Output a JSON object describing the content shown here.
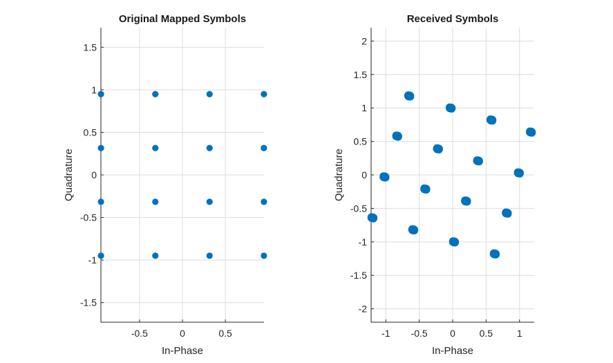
{
  "figure": {
    "marker_color": "#0072BD"
  },
  "chart_data": [
    {
      "type": "scatter",
      "title": "Original Mapped Symbols",
      "xlabel": "In-Phase",
      "ylabel": "Quadrature",
      "xlim": [
        -0.95,
        0.95
      ],
      "ylim": [
        -1.73,
        1.73
      ],
      "xticks": [
        -0.5,
        0,
        0.5
      ],
      "xtick_labels": [
        "-0.5",
        "0",
        "0.5"
      ],
      "yticks": [
        -1.5,
        -1,
        -0.5,
        0,
        0.5,
        1,
        1.5
      ],
      "ytick_labels": [
        "-1.5",
        "-1",
        "-0.5",
        "0",
        "0.5",
        "1",
        "1.5"
      ],
      "grid": true,
      "points": [
        [
          -0.949,
          0.949
        ],
        [
          -0.316,
          0.949
        ],
        [
          0.316,
          0.949
        ],
        [
          0.949,
          0.949
        ],
        [
          -0.949,
          0.316
        ],
        [
          -0.316,
          0.316
        ],
        [
          0.316,
          0.316
        ],
        [
          0.949,
          0.316
        ],
        [
          -0.949,
          -0.316
        ],
        [
          -0.316,
          -0.316
        ],
        [
          0.316,
          -0.316
        ],
        [
          0.949,
          -0.316
        ],
        [
          -0.949,
          -0.949
        ],
        [
          -0.316,
          -0.949
        ],
        [
          0.316,
          -0.949
        ],
        [
          0.949,
          -0.949
        ]
      ]
    },
    {
      "type": "scatter",
      "title": "Received Symbols",
      "xlabel": "In-Phase",
      "ylabel": "Quadrature",
      "xlim": [
        -1.22,
        1.22
      ],
      "ylim": [
        -2.2,
        2.2
      ],
      "xticks": [
        -1,
        -0.5,
        0,
        0.5,
        1
      ],
      "xtick_labels": [
        "-1",
        "-0.5",
        "0",
        "0.5",
        "1"
      ],
      "yticks": [
        -2,
        -1.5,
        -1,
        -0.5,
        0,
        0.5,
        1,
        1.5,
        2
      ],
      "ytick_labels": [
        "-2",
        "-1.5",
        "-1",
        "-0.5",
        "0",
        "0.5",
        "1",
        "1.5",
        "2"
      ],
      "grid": true,
      "points": [
        [
          -0.65,
          1.18
        ],
        [
          -0.03,
          1.0
        ],
        [
          0.58,
          0.82
        ],
        [
          1.17,
          0.64
        ],
        [
          -0.83,
          0.58
        ],
        [
          -0.22,
          0.39
        ],
        [
          0.38,
          0.21
        ],
        [
          0.99,
          0.03
        ],
        [
          -1.02,
          -0.03
        ],
        [
          -0.41,
          -0.21
        ],
        [
          0.2,
          -0.39
        ],
        [
          0.81,
          -0.57
        ],
        [
          -1.2,
          -0.64
        ],
        [
          -0.59,
          -0.82
        ],
        [
          0.02,
          -1.0
        ],
        [
          0.63,
          -1.18
        ]
      ]
    }
  ]
}
